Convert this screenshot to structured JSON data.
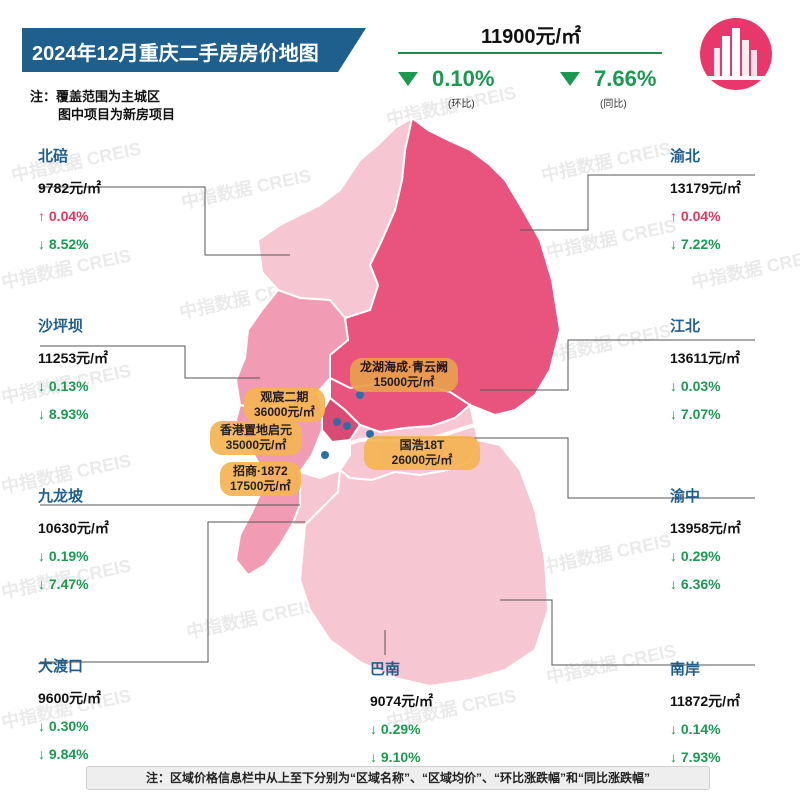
{
  "title": "2024年12月重庆二手房房价地图",
  "note": [
    "注：覆盖范围为主城区",
    "图中项目为新房项目"
  ],
  "summary": {
    "avg_price": "11900元/㎡",
    "mom_pct": "0.10%",
    "mom_label": "(环比)",
    "yoy_pct": "7.66%",
    "yoy_label": "(同比)",
    "trend_color": "#1a9950"
  },
  "districts": {
    "beibei": {
      "name": "北碚",
      "price": "9782元/㎡",
      "mom": "↑ 0.04%",
      "yoy": "↓ 8.52%"
    },
    "yubei": {
      "name": "渝北",
      "price": "13179元/㎡",
      "mom": "↑ 0.04%",
      "yoy": "↓ 7.22%"
    },
    "shapingba": {
      "name": "沙坪坝",
      "price": "11253元/㎡",
      "mom": "↓ 0.13%",
      "yoy": "↓ 8.93%"
    },
    "jiangbei": {
      "name": "江北",
      "price": "13611元/㎡",
      "mom": "↓ 0.03%",
      "yoy": "↓ 7.07%"
    },
    "jiulongpo": {
      "name": "九龙坡",
      "price": "10630元/㎡",
      "mom": "↓ 0.19%",
      "yoy": "↓ 7.47%"
    },
    "yuzhong": {
      "name": "渝中",
      "price": "13958元/㎡",
      "mom": "↓ 0.29%",
      "yoy": "↓ 6.36%"
    },
    "dadukou": {
      "name": "大渡口",
      "price": "9600元/㎡",
      "mom": "↓ 0.30%",
      "yoy": "↓ 9.84%"
    },
    "banan": {
      "name": "巴南",
      "price": "9074元/㎡",
      "mom": "↓ 0.29%",
      "yoy": "↓ 9.10%"
    },
    "nanan": {
      "name": "南岸",
      "price": "11872元/㎡",
      "mom": "↓ 0.14%",
      "yoy": "↓ 7.93%"
    }
  },
  "projects": {
    "longhu": {
      "name": "龙湖海成·青云阙",
      "price": "15000元/㎡"
    },
    "guanchen": {
      "name": "观宸二期",
      "price": "36000元/㎡"
    },
    "xianggang": {
      "name": "香港置地启元",
      "price": "35000元/㎡"
    },
    "guohao": {
      "name": "国浩18T",
      "price": "26000元/㎡"
    },
    "zhaoshang": {
      "name": "招商·1872",
      "price": "17500元/㎡"
    }
  },
  "watermark": "中指数据 CREIS",
  "footer": "注：区域价格信息栏中从上至下分别为“区域名称”、“区域均价”、“环比涨跌幅”和“同比涨跌幅”",
  "colors": {
    "banner": "#1e5f8e",
    "up": "#e6355f",
    "down": "#1a9950",
    "district_dark": "#e8547e",
    "district_mid": "#f29bb4",
    "district_light": "#f7c6d3"
  }
}
